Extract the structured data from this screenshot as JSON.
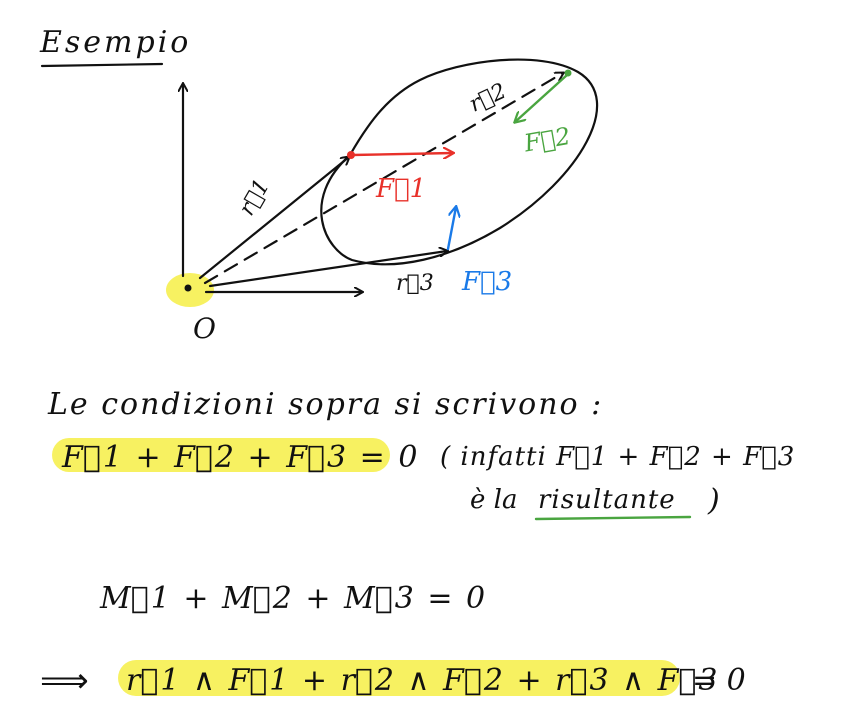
{
  "title": "Esempio",
  "diagram": {
    "origin_label": "O",
    "r1_label": "r⃗1",
    "r2_label": "r⃗2",
    "r3_label": "r⃗3",
    "F1_label": "F⃗1",
    "F2_label": "F⃗2",
    "F3_label": "F⃗3"
  },
  "colors": {
    "ink": "#111111",
    "red": "#e8312a",
    "green": "#4aa540",
    "blue": "#1a7ae8",
    "highlight": "#f6ee45"
  },
  "text": {
    "line1": "Le condizioni sopra si scrivono :",
    "eq_forces": "F⃗1 + F⃗2 + F⃗3 = 0",
    "note_line1": "( infatti F⃗1 + F⃗2 + F⃗3",
    "note_line2_prefix": "è la",
    "note_line2_word": "risultante",
    "note_line2_suffix": ")",
    "eq_moments": "M⃗1 + M⃗2 + M⃗3 = 0",
    "implies": "⟹",
    "eq_cross": "r⃗1 ∧ F⃗1 + r⃗2 ∧ F⃗2 + r⃗3 ∧ F⃗3",
    "eq_cross_end": "= 0"
  }
}
